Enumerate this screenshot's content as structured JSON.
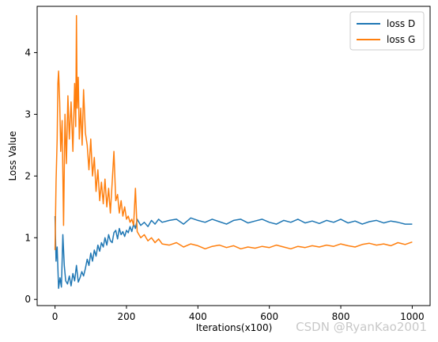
{
  "chart_data": {
    "type": "line",
    "xlabel": "Iterations(x100)",
    "ylabel": "Loss Value",
    "xlim": [
      -50,
      1050
    ],
    "ylim": [
      -0.1,
      4.75
    ],
    "xticks": [
      0,
      200,
      400,
      600,
      800,
      1000
    ],
    "yticks": [
      0,
      1,
      2,
      3,
      4
    ],
    "grid": false,
    "legend_position": "top-right",
    "series": [
      {
        "name": "loss D",
        "color": "#1f77b4",
        "x": [
          0,
          3,
          6,
          10,
          14,
          18,
          22,
          26,
          30,
          35,
          40,
          45,
          50,
          55,
          60,
          65,
          70,
          75,
          80,
          85,
          90,
          95,
          100,
          105,
          110,
          115,
          120,
          125,
          130,
          135,
          140,
          145,
          150,
          155,
          160,
          165,
          170,
          175,
          180,
          185,
          190,
          195,
          200,
          205,
          210,
          215,
          220,
          225,
          230,
          240,
          250,
          260,
          270,
          280,
          290,
          300,
          320,
          340,
          360,
          380,
          400,
          420,
          440,
          460,
          480,
          500,
          520,
          540,
          560,
          580,
          600,
          620,
          640,
          660,
          680,
          700,
          720,
          740,
          760,
          780,
          800,
          820,
          840,
          860,
          880,
          900,
          920,
          940,
          960,
          980,
          1000
        ],
        "y": [
          1.35,
          0.62,
          0.85,
          0.18,
          0.35,
          0.2,
          1.05,
          0.55,
          0.3,
          0.25,
          0.38,
          0.22,
          0.42,
          0.3,
          0.55,
          0.28,
          0.35,
          0.45,
          0.38,
          0.5,
          0.65,
          0.55,
          0.75,
          0.62,
          0.8,
          0.7,
          0.88,
          0.78,
          0.92,
          0.85,
          1.0,
          0.88,
          1.05,
          0.95,
          0.92,
          1.08,
          1.12,
          0.98,
          1.15,
          1.05,
          1.1,
          1.02,
          1.12,
          1.08,
          1.18,
          1.1,
          1.22,
          1.15,
          1.3,
          1.2,
          1.25,
          1.18,
          1.28,
          1.22,
          1.3,
          1.25,
          1.28,
          1.3,
          1.22,
          1.32,
          1.28,
          1.25,
          1.3,
          1.26,
          1.22,
          1.28,
          1.3,
          1.24,
          1.27,
          1.3,
          1.25,
          1.22,
          1.28,
          1.25,
          1.3,
          1.24,
          1.27,
          1.23,
          1.28,
          1.25,
          1.3,
          1.24,
          1.27,
          1.22,
          1.26,
          1.28,
          1.24,
          1.27,
          1.25,
          1.22,
          1.22
        ]
      },
      {
        "name": "loss G",
        "color": "#ff7f0e",
        "x": [
          0,
          3,
          6,
          8,
          10,
          13,
          16,
          20,
          24,
          28,
          32,
          36,
          40,
          45,
          50,
          55,
          58,
          60,
          62,
          65,
          68,
          72,
          76,
          80,
          85,
          90,
          95,
          100,
          105,
          110,
          115,
          120,
          125,
          130,
          135,
          140,
          145,
          150,
          155,
          160,
          165,
          170,
          175,
          180,
          185,
          190,
          195,
          200,
          205,
          210,
          215,
          220,
          225,
          230,
          240,
          250,
          260,
          270,
          280,
          290,
          300,
          320,
          340,
          360,
          380,
          400,
          420,
          440,
          460,
          480,
          500,
          520,
          540,
          560,
          580,
          600,
          620,
          640,
          660,
          680,
          700,
          720,
          740,
          760,
          780,
          800,
          820,
          840,
          860,
          880,
          900,
          920,
          940,
          960,
          980,
          1000
        ],
        "y": [
          0.8,
          1.9,
          2.6,
          3.5,
          3.7,
          3.2,
          2.4,
          2.9,
          1.2,
          3.0,
          2.2,
          3.3,
          2.6,
          3.2,
          2.4,
          3.5,
          2.8,
          4.6,
          3.1,
          3.6,
          2.6,
          3.1,
          2.5,
          3.4,
          2.7,
          2.5,
          2.1,
          2.6,
          2.0,
          2.3,
          1.75,
          2.1,
          1.6,
          1.9,
          1.55,
          1.95,
          1.5,
          1.8,
          1.4,
          1.9,
          2.4,
          1.6,
          1.7,
          1.4,
          1.6,
          1.35,
          1.5,
          1.3,
          1.35,
          1.25,
          1.3,
          1.2,
          1.8,
          1.1,
          1.0,
          1.05,
          0.95,
          1.0,
          0.92,
          0.98,
          0.9,
          0.88,
          0.92,
          0.85,
          0.9,
          0.87,
          0.82,
          0.86,
          0.88,
          0.84,
          0.87,
          0.82,
          0.85,
          0.83,
          0.86,
          0.84,
          0.88,
          0.85,
          0.82,
          0.86,
          0.84,
          0.87,
          0.85,
          0.88,
          0.86,
          0.9,
          0.87,
          0.85,
          0.89,
          0.91,
          0.88,
          0.9,
          0.87,
          0.92,
          0.89,
          0.93
        ]
      }
    ]
  },
  "watermark": "CSDN @RyanKao2001"
}
